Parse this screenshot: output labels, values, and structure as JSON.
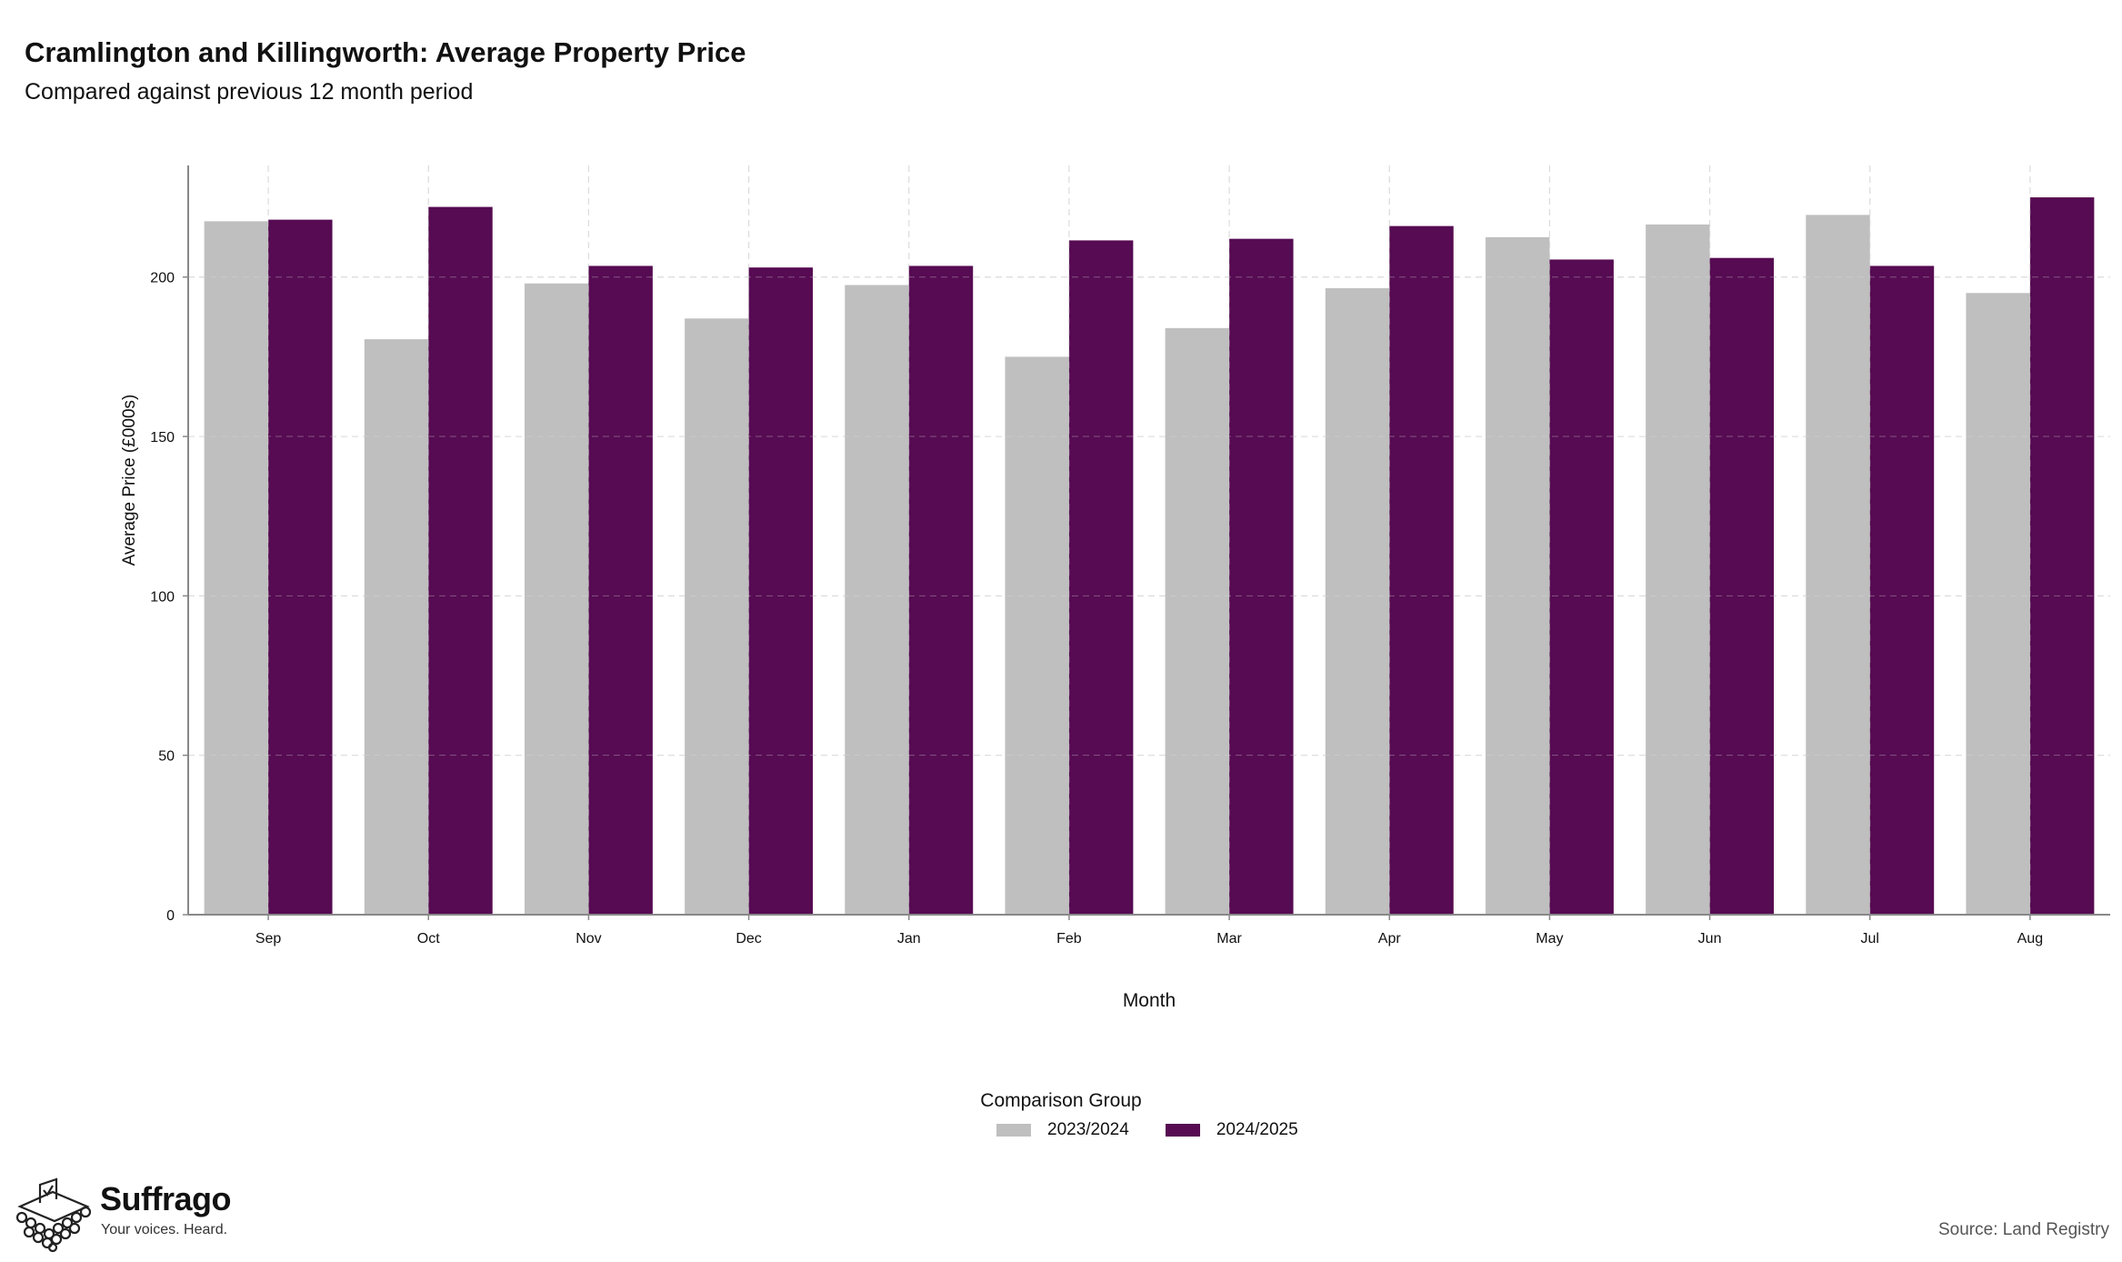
{
  "header": {
    "title": "Cramlington and Killingworth: Average Property Price",
    "subtitle": "Compared against previous 12 month period"
  },
  "footer": {
    "brand": "Suffrago",
    "tagline": "Your voices. Heard.",
    "source": "Source: Land Registry"
  },
  "legend": {
    "title": "Comparison Group"
  },
  "chart_data": {
    "type": "bar",
    "title": "Cramlington and Killingworth: Average Property Price",
    "subtitle": "Compared against previous 12 month period",
    "xlabel": "Month",
    "ylabel": "Average Price (£000s)",
    "categories": [
      "Sep",
      "Oct",
      "Nov",
      "Dec",
      "Jan",
      "Feb",
      "Mar",
      "Apr",
      "May",
      "Jun",
      "Jul",
      "Aug"
    ],
    "series": [
      {
        "name": "2023/2024",
        "color": "#bfbfbf",
        "values": [
          217.5,
          180.5,
          198,
          187,
          197.5,
          175,
          184,
          196.5,
          212.5,
          216.5,
          219.5,
          195
        ]
      },
      {
        "name": "2024/2025",
        "color": "#560b52",
        "values": [
          218,
          222,
          203.5,
          203,
          203.5,
          211.5,
          212,
          216,
          205.5,
          206,
          203.5,
          225
        ]
      }
    ],
    "yticks": [
      0,
      50,
      100,
      150,
      200
    ],
    "ylim": [
      0,
      235
    ],
    "grid": true,
    "legend_position": "bottom"
  }
}
